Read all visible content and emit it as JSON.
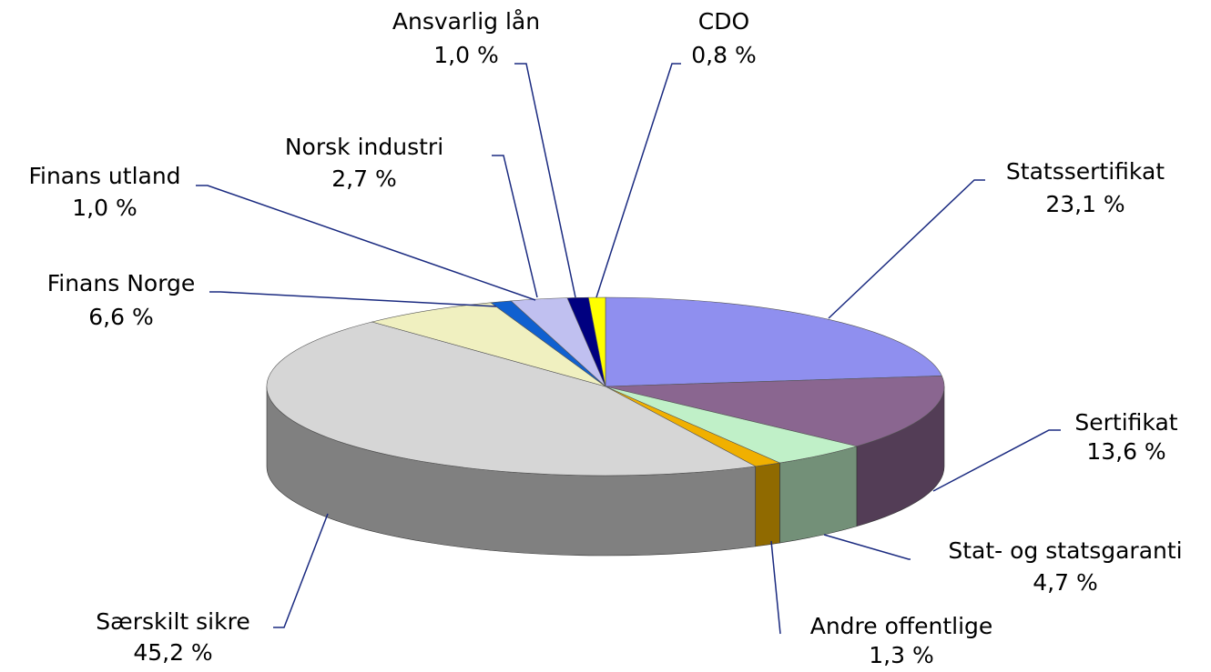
{
  "chart_data": {
    "type": "pie",
    "categories": [
      "Statssertifikat",
      "Sertifikat",
      "Stat- og statsgaranti",
      "Andre offentlige",
      "Særskilt sikre",
      "Finans Norge",
      "Finans utland",
      "Norsk industri",
      "Ansvarlig lån",
      "CDO"
    ],
    "values": [
      23.1,
      13.6,
      4.7,
      1.3,
      45.2,
      6.6,
      1.0,
      2.7,
      1.0,
      0.8
    ],
    "value_labels": [
      "23,1 %",
      "13,6 %",
      "4,7 %",
      "1,3 %",
      "45,2 %",
      "6,6 %",
      "1,0 %",
      "2,7 %",
      "1,0 %",
      "0,8 %"
    ],
    "colors": [
      "#8f8fef",
      "#8a6690",
      "#c0f0c8",
      "#f0b000",
      "#d6d6d6",
      "#f0f0c0",
      "#1060d0",
      "#c0c0f0",
      "#000080",
      "#ffff00"
    ]
  }
}
